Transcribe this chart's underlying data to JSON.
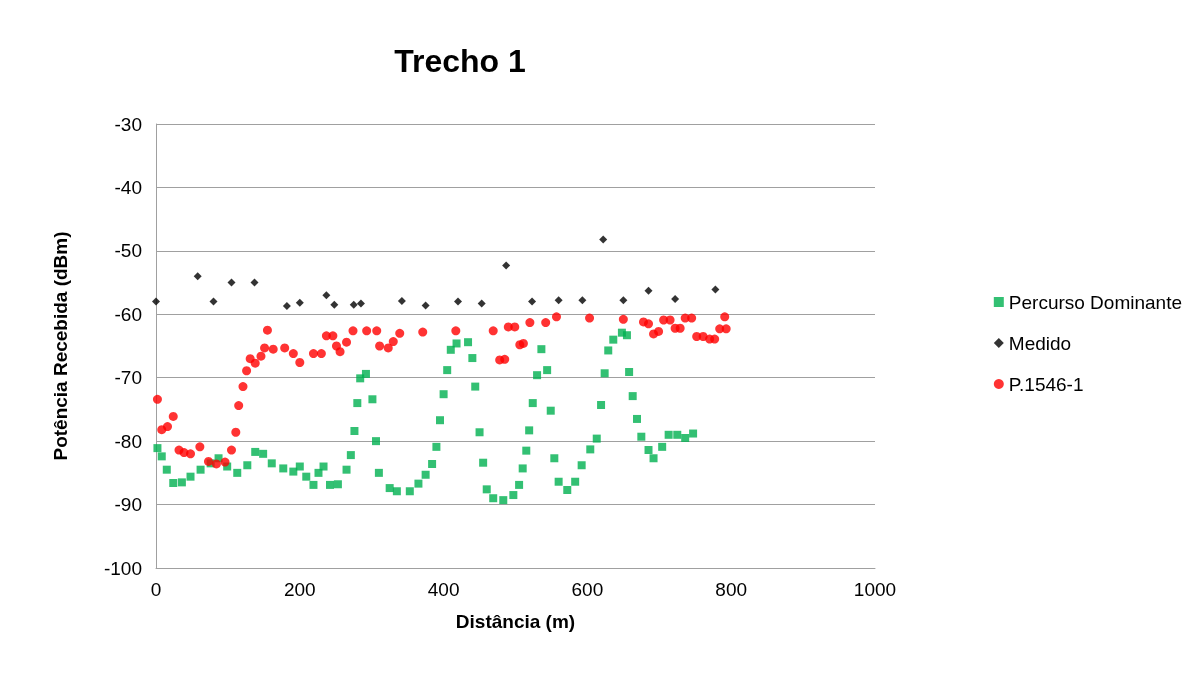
{
  "chart_data": {
    "type": "scatter",
    "title": "Trecho 1",
    "xlabel": "Distância (m)",
    "ylabel": "Potência Recebida (dBm)",
    "xlim": [
      0,
      1000
    ],
    "xticks": [
      0,
      200,
      400,
      600,
      800,
      1000
    ],
    "ylim": [
      -100,
      -30
    ],
    "yticks": [
      -100,
      -90,
      -80,
      -70,
      -60,
      -50,
      -40,
      -30
    ],
    "grid": "y",
    "legend": "right",
    "series": [
      {
        "name": "Percurso Dominante",
        "color": "#00b050",
        "marker": "square",
        "x": [
          2,
          8,
          15,
          24,
          36,
          48,
          62,
          76,
          87,
          99,
          113,
          127,
          138,
          149,
          161,
          177,
          191,
          200,
          209,
          219,
          226,
          233,
          242,
          253,
          265,
          271,
          276,
          280,
          284,
          292,
          301,
          306,
          310,
          325,
          335,
          353,
          365,
          375,
          384,
          390,
          395,
          400,
          405,
          410,
          418,
          434,
          440,
          444,
          450,
          455,
          460,
          469,
          483,
          497,
          505,
          510,
          515,
          519,
          524,
          530,
          536,
          544,
          549,
          554,
          560,
          572,
          583,
          592,
          604,
          613,
          619,
          624,
          629,
          636,
          648,
          655,
          658,
          663,
          669,
          675,
          685,
          692,
          704,
          713,
          725,
          736,
          747
        ],
        "values": [
          -81.1,
          -82.4,
          -84.5,
          -86.6,
          -86.5,
          -85.6,
          -84.5,
          -83.5,
          -82.7,
          -84,
          -85,
          -83.8,
          -81.7,
          -82,
          -83.5,
          -84.3,
          -84.8,
          -84,
          -85.6,
          -86.9,
          -85,
          -84,
          -86.9,
          -86.8,
          -84.5,
          -82.2,
          -78.4,
          -74,
          -70.1,
          -69.4,
          -73.4,
          -80,
          -85,
          -87.4,
          -87.9,
          -87.9,
          -86.7,
          -85.3,
          -83.6,
          -80.9,
          -76.7,
          -72.6,
          -68.8,
          -65.6,
          -64.6,
          -64.4,
          -66.9,
          -71.4,
          -78.6,
          -83.4,
          -87.6,
          -89,
          -89.3,
          -88.5,
          -86.9,
          -84.3,
          -81.5,
          -78.3,
          -74,
          -69.6,
          -65.5,
          -68.8,
          -75.2,
          -82.7,
          -86.4,
          -87.7,
          -86.4,
          -83.8,
          -81.3,
          -79.6,
          -74.3,
          -69.3,
          -65.7,
          -64,
          -62.9,
          -63.3,
          -69.1,
          -72.9,
          -76.5,
          -79.3,
          -81.4,
          -82.7,
          -80.9,
          -79,
          -79,
          -79.5,
          -78.8
        ]
      },
      {
        "name": "Medido",
        "color": "#000000",
        "marker": "diamond",
        "x": [
          0,
          58,
          80,
          105,
          137,
          182,
          200,
          237,
          248,
          275,
          285,
          342,
          375,
          420,
          453,
          487,
          523,
          560,
          593,
          622,
          650,
          685,
          722,
          778
        ],
        "values": [
          -58,
          -54,
          -58,
          -55,
          -55,
          -58.7,
          -58.2,
          -57,
          -58.5,
          -58.5,
          -58.3,
          -57.9,
          -58.6,
          -58,
          -58.3,
          -52.3,
          -58,
          -57.8,
          -57.8,
          -48.2,
          -57.8,
          -56.3,
          -57.6,
          -56.1
        ]
      },
      {
        "name": "P.1546-1",
        "color": "#ff0000",
        "marker": "circle",
        "x": [
          2,
          8,
          16,
          24,
          32,
          39,
          48,
          61,
          73,
          84,
          96,
          105,
          111,
          115,
          121,
          126,
          131,
          138,
          146,
          151,
          155,
          163,
          179,
          191,
          200,
          219,
          230,
          237,
          246,
          251,
          256,
          265,
          274,
          293,
          307,
          311,
          323,
          330,
          339,
          371,
          417,
          469,
          478,
          485,
          490,
          499,
          506,
          511,
          520,
          542,
          557,
          603,
          650,
          678,
          685,
          692,
          699,
          706,
          715,
          722,
          729,
          736,
          745,
          752,
          761,
          770,
          777,
          784,
          791,
          793
        ],
        "values": [
          -73.4,
          -78.2,
          -77.7,
          -76.1,
          -81.4,
          -81.8,
          -82,
          -80.9,
          -83.2,
          -83.6,
          -83.3,
          -81.4,
          -78.6,
          -74.4,
          -71.4,
          -68.9,
          -67,
          -67.7,
          -66.6,
          -65.3,
          -62.5,
          -65.5,
          -65.3,
          -66.2,
          -67.6,
          -66.2,
          -66.2,
          -63.4,
          -63.4,
          -65,
          -65.9,
          -64.4,
          -62.6,
          -62.6,
          -62.6,
          -65,
          -65.3,
          -64.3,
          -63,
          -62.8,
          -62.6,
          -62.6,
          -67.2,
          -67.1,
          -62,
          -62,
          -64.8,
          -64.6,
          -61.3,
          -61.3,
          -60.4,
          -60.6,
          -60.8,
          -61.2,
          -61.5,
          -63.1,
          -62.7,
          -60.9,
          -60.9,
          -62.2,
          -62.2,
          -60.6,
          -60.6,
          -63.5,
          -63.5,
          -63.9,
          -63.9,
          -62.3,
          -60.4,
          -62.3
        ]
      }
    ]
  }
}
